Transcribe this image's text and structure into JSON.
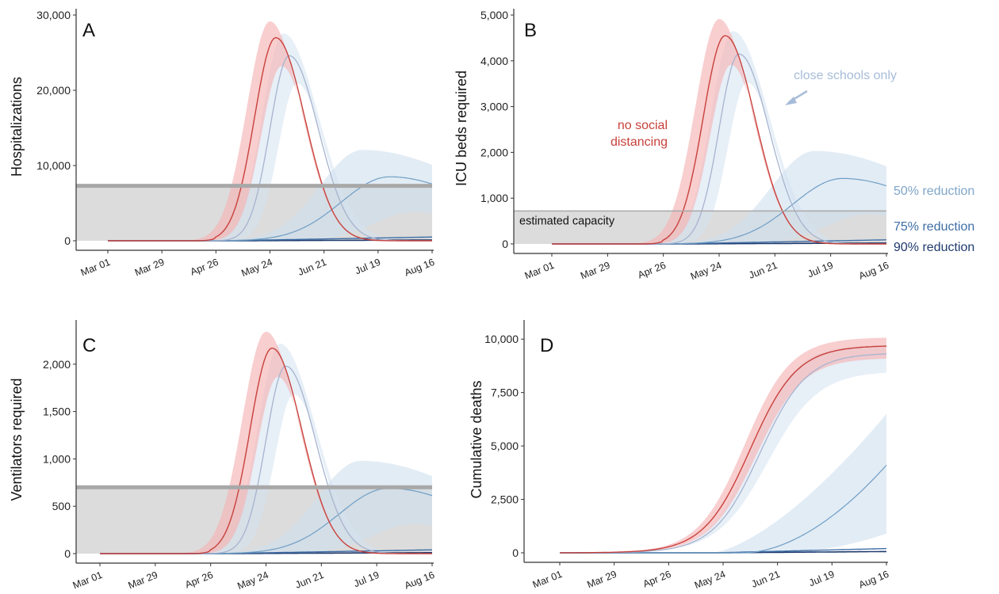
{
  "colors": {
    "no_distancing": "#c8413c",
    "no_distancing_band": "#f4b3b5",
    "close_schools": "#a7b4cf",
    "close_schools_band": "#d3e2f0",
    "r50": "#6f9ec4",
    "r50_band": "#cfe0ee",
    "r75": "#3e6ea6",
    "r90": "#1f3a6d",
    "capacity_fill": "#dcdcdc",
    "capacity_line": "#a8a8a8"
  },
  "x_ticks": [
    "Mar 01",
    "Mar 29",
    "Apr 26",
    "May 24",
    "Jun 21",
    "Jul 19",
    "Aug 16"
  ],
  "panels": {
    "A": {
      "letter": "A",
      "ylabel": "Hospitalizations",
      "ylim": [
        0,
        30000
      ],
      "yticks": [
        "0",
        "10,000",
        "20,000",
        "30,000"
      ],
      "ytick_values": [
        0,
        10000,
        20000,
        30000
      ],
      "capacity": 7300
    },
    "B": {
      "letter": "B",
      "ylabel": "ICU beds required",
      "ylim": [
        0,
        5000
      ],
      "yticks": [
        "0",
        "1,000",
        "2,000",
        "3,000",
        "4,000",
        "5,000"
      ],
      "ytick_values": [
        0,
        1000,
        2000,
        3000,
        4000,
        5000
      ],
      "capacity": 720,
      "annotations": {
        "no_social_distancing": [
          "no social",
          "distancing"
        ],
        "close_schools_only": "close schools only",
        "estimated_capacity": "estimated capacity",
        "r50": "50% reduction",
        "r75": "75% reduction",
        "r90": "90% reduction"
      }
    },
    "C": {
      "letter": "C",
      "ylabel": "Ventilators required",
      "ylim": [
        0,
        2400
      ],
      "yticks": [
        "0",
        "500",
        "1,000",
        "1,500",
        "2,000"
      ],
      "ytick_values": [
        0,
        500,
        1000,
        1500,
        2000
      ],
      "capacity": 700
    },
    "D": {
      "letter": "D",
      "ylabel": "Cumulative deaths",
      "ylim": [
        0,
        10600
      ],
      "yticks": [
        "0",
        "2,500",
        "5,000",
        "7,500",
        "10,000"
      ],
      "ytick_values": [
        0,
        2500,
        5000,
        7500,
        10000
      ]
    }
  },
  "chart_data": [
    {
      "type": "line",
      "panel": "A",
      "ylabel": "Hospitalizations",
      "x": [
        "Mar 01",
        "Mar 29",
        "Apr 26",
        "May 24",
        "Jun 21",
        "Jul 19",
        "Aug 16"
      ],
      "series": [
        {
          "name": "no social distancing",
          "peak_date": "May 27",
          "peak_value": 27000,
          "values": [
            0,
            0,
            200,
            26500,
            5000,
            800,
            300
          ]
        },
        {
          "name": "close schools only",
          "peak_date": "Jun 03",
          "peak_value": 24600,
          "values": [
            0,
            0,
            20,
            18000,
            13000,
            1500,
            400
          ]
        },
        {
          "name": "50% reduction",
          "peak_date": "Jul 24",
          "peak_value": 8500,
          "values": [
            0,
            0,
            0,
            300,
            3500,
            8300,
            7200
          ]
        },
        {
          "name": "75% reduction",
          "values": [
            0,
            0,
            0,
            20,
            100,
            300,
            500
          ]
        },
        {
          "name": "90% reduction",
          "values": [
            0,
            0,
            0,
            5,
            20,
            50,
            100
          ]
        }
      ],
      "capacity": 7300
    },
    {
      "type": "line",
      "panel": "B",
      "ylabel": "ICU beds required",
      "x": [
        "Mar 01",
        "Mar 29",
        "Apr 26",
        "May 24",
        "Jun 21",
        "Jul 19",
        "Aug 16"
      ],
      "series": [
        {
          "name": "no social distancing",
          "peak_date": "May 27",
          "peak_value": 4550,
          "values": [
            0,
            0,
            30,
            4450,
            850,
            150,
            50
          ]
        },
        {
          "name": "close schools only",
          "peak_date": "Jun 03",
          "peak_value": 4150,
          "values": [
            0,
            0,
            5,
            3050,
            2200,
            250,
            70
          ]
        },
        {
          "name": "50% reduction",
          "peak_date": "Jul 24",
          "peak_value": 1430,
          "values": [
            0,
            0,
            0,
            50,
            600,
            1400,
            1200
          ]
        },
        {
          "name": "75% reduction",
          "values": [
            0,
            0,
            0,
            5,
            20,
            50,
            90
          ]
        },
        {
          "name": "90% reduction",
          "values": [
            0,
            0,
            0,
            1,
            5,
            10,
            20
          ]
        }
      ],
      "capacity": 720
    },
    {
      "type": "line",
      "panel": "C",
      "ylabel": "Ventilators required",
      "x": [
        "Mar 01",
        "Mar 29",
        "Apr 26",
        "May 24",
        "Jun 21",
        "Jul 19",
        "Aug 16"
      ],
      "series": [
        {
          "name": "no social distancing",
          "peak_date": "May 27",
          "peak_value": 2170,
          "values": [
            0,
            0,
            15,
            2120,
            420,
            70,
            25
          ]
        },
        {
          "name": "close schools only",
          "peak_date": "Jun 03",
          "peak_value": 1980,
          "values": [
            0,
            0,
            2,
            1450,
            1050,
            120,
            35
          ]
        },
        {
          "name": "50% reduction",
          "peak_date": "Jul 24",
          "peak_value": 690,
          "values": [
            0,
            0,
            0,
            25,
            290,
            680,
            570
          ]
        },
        {
          "name": "75% reduction",
          "values": [
            0,
            0,
            0,
            3,
            10,
            25,
            40
          ]
        },
        {
          "name": "90% reduction",
          "values": [
            0,
            0,
            0,
            1,
            3,
            5,
            10
          ]
        }
      ],
      "capacity": 700
    },
    {
      "type": "line",
      "panel": "D",
      "ylabel": "Cumulative deaths",
      "x": [
        "Mar 01",
        "Mar 29",
        "Apr 26",
        "May 24",
        "Jun 21",
        "Jul 19",
        "Aug 16"
      ],
      "series": [
        {
          "name": "no social distancing",
          "values": [
            0,
            0,
            10,
            2500,
            8300,
            9500,
            9700
          ]
        },
        {
          "name": "close schools only",
          "values": [
            0,
            0,
            2,
            1500,
            7000,
            9000,
            9350
          ]
        },
        {
          "name": "50% reduction",
          "values": [
            0,
            0,
            0,
            30,
            400,
            1800,
            4100
          ]
        },
        {
          "name": "75% reduction",
          "values": [
            0,
            0,
            0,
            5,
            30,
            100,
            200
          ]
        },
        {
          "name": "90% reduction",
          "values": [
            0,
            0,
            0,
            1,
            10,
            30,
            60
          ]
        }
      ]
    }
  ]
}
